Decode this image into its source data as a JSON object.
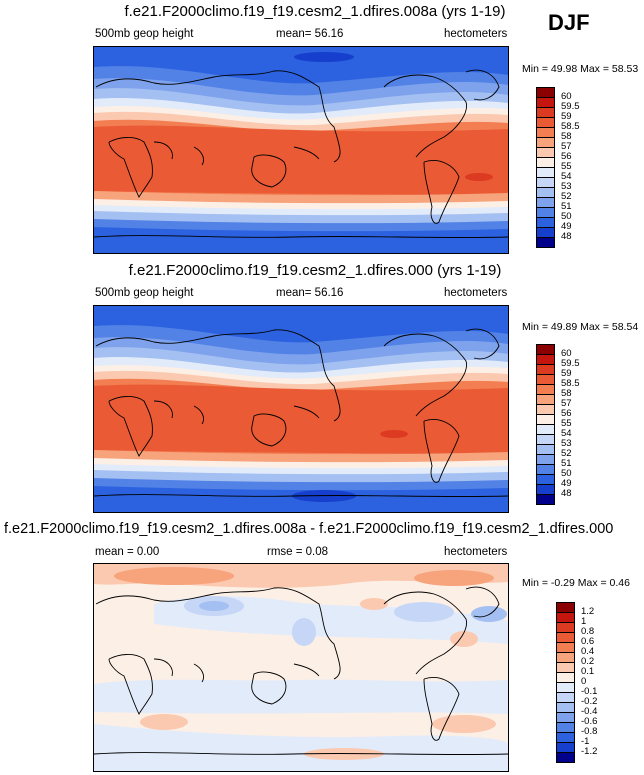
{
  "season": "DJF",
  "panels": [
    {
      "title": "f.e21.F2000climo.f19_f19.cesm2_1.dfires.008a (yrs 1-19)",
      "left_label": "500mb geop height",
      "center_label": "mean=  56.16",
      "right_label": "hectometers",
      "minmax": "Min = 49.98 Max = 58.53",
      "type": "abs"
    },
    {
      "title": "f.e21.F2000climo.f19_f19.cesm2_1.dfires.000 (yrs 1-19)",
      "left_label": "500mb geop height",
      "center_label": "mean=  56.16",
      "right_label": "hectometers",
      "minmax": "Min = 49.89 Max = 58.54",
      "type": "abs"
    },
    {
      "title": "f.e21.F2000climo.f19_f19.cesm2_1.dfires.008a - f.e21.F2000climo.f19_f19.cesm2_1.dfires.000",
      "left_label": "mean =  0.00",
      "center_label": "rmse =  0.08",
      "right_label": "hectometers",
      "minmax": "Min = -0.29 Max =  0.46",
      "type": "diff"
    }
  ],
  "colorbar_abs": {
    "labels": [
      "60",
      "59.5",
      "59",
      "58.5",
      "58",
      "57",
      "56",
      "55",
      "54",
      "53",
      "52",
      "51",
      "50",
      "49",
      "48"
    ],
    "colors": [
      "#8b0000",
      "#c4160f",
      "#dd3a22",
      "#ea5a35",
      "#f27e52",
      "#f7a37c",
      "#fbc9b0",
      "#fcefe6",
      "#e2ebfa",
      "#c5d6f6",
      "#a4bff1",
      "#7ea2ec",
      "#5282e6",
      "#2c62e0",
      "#153fcc",
      "#00008b"
    ]
  },
  "colorbar_diff": {
    "labels": [
      "1.2",
      "1",
      "0.8",
      "0.6",
      "0.4",
      "0.2",
      "0.1",
      "0",
      "-0.1",
      "-0.2",
      "-0.4",
      "-0.6",
      "-0.8",
      "-1",
      "-1.2"
    ],
    "colors": [
      "#8b0000",
      "#c4160f",
      "#dd3a22",
      "#ea5a35",
      "#f27e52",
      "#f7a37c",
      "#fbc9b0",
      "#fcefe6",
      "#e2ebfa",
      "#c5d6f6",
      "#a4bff1",
      "#7ea2ec",
      "#5282e6",
      "#2c62e0",
      "#153fcc",
      "#00008b"
    ]
  }
}
